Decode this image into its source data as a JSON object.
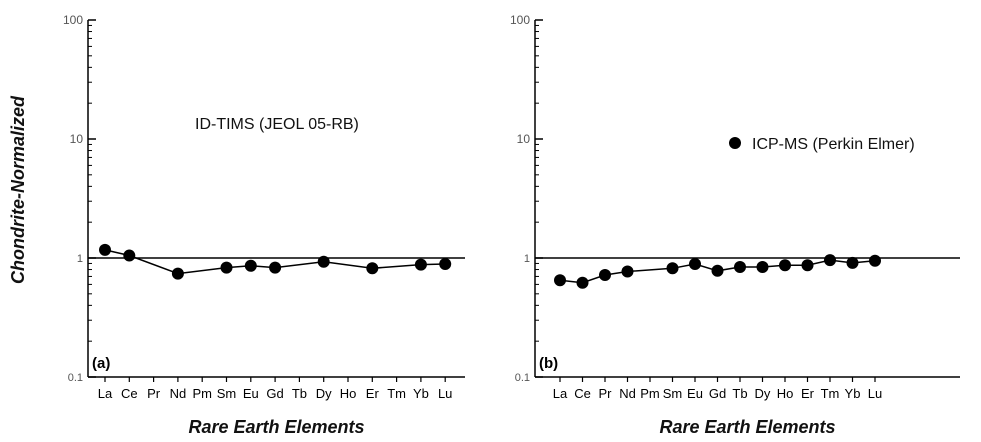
{
  "y_axis_title": "Chondrite-Normalized",
  "colors": {
    "marker": "#000000",
    "line": "#000000",
    "axis": "#000000"
  },
  "chart_data": [
    {
      "type": "line",
      "panel_label": "(a)",
      "annotation": "ID-TIMS (JEOL 05-RB)",
      "xlabel": "Rare Earth Elements",
      "ylabel": "Chondrite-Normalized",
      "y_scale": "log",
      "ylim": [
        0.1,
        100
      ],
      "y_ticks": [
        "0.1",
        "1",
        "10",
        "100"
      ],
      "reference_line": 1,
      "categories": [
        "La",
        "Ce",
        "Pr",
        "Nd",
        "Pm",
        "Sm",
        "Eu",
        "Gd",
        "Tb",
        "Dy",
        "Ho",
        "Er",
        "Tm",
        "Yb",
        "Lu"
      ],
      "series": [
        {
          "values": [
            1.17,
            1.05,
            null,
            0.74,
            null,
            0.83,
            0.86,
            0.83,
            null,
            0.93,
            null,
            0.82,
            null,
            0.88,
            0.89
          ]
        }
      ],
      "grid": false
    },
    {
      "type": "line",
      "panel_label": "(b)",
      "xlabel": "Rare Earth Elements",
      "ylabel": "",
      "y_scale": "log",
      "ylim": [
        0.1,
        100
      ],
      "y_ticks": [
        "0.1",
        "1",
        "10",
        "100"
      ],
      "reference_line": 1,
      "categories": [
        "La",
        "Ce",
        "Pr",
        "Nd",
        "Pm",
        "Sm",
        "Eu",
        "Gd",
        "Tb",
        "Dy",
        "Ho",
        "Er",
        "Tm",
        "Yb",
        "Lu"
      ],
      "series": [
        {
          "name": "ICP-MS (Perkin Elmer)",
          "values": [
            0.65,
            0.62,
            0.72,
            0.77,
            null,
            0.82,
            0.89,
            0.78,
            0.84,
            0.84,
            0.87,
            0.87,
            0.96,
            0.91,
            0.95
          ]
        }
      ],
      "legend_position": "top-right",
      "grid": false
    }
  ]
}
